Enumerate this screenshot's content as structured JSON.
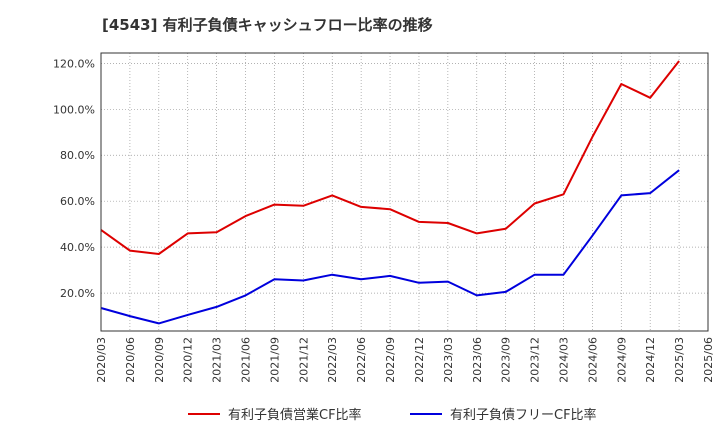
{
  "chart_data": {
    "type": "line",
    "title": "[4543]  有利子負債キャッシュフロー比率の推移",
    "x": [
      "2020/03",
      "2020/06",
      "2020/09",
      "2020/12",
      "2021/03",
      "2021/06",
      "2021/09",
      "2021/12",
      "2022/03",
      "2022/06",
      "2022/09",
      "2022/12",
      "2023/03",
      "2023/06",
      "2023/09",
      "2023/12",
      "2024/03",
      "2024/06",
      "2024/09",
      "2024/12",
      "2025/03",
      "2025/06"
    ],
    "ylim": [
      3.5,
      124.5
    ],
    "yticks": [
      20,
      40,
      60,
      80,
      100,
      120
    ],
    "ytick_labels": [
      "20.0%",
      "40.0%",
      "60.0%",
      "80.0%",
      "100.0%",
      "120.0%"
    ],
    "grid": true,
    "legend_position": "bottom",
    "series": [
      {
        "name": "有利子負債営業CF比率",
        "color": "#dd0000",
        "values": [
          47.5,
          38.5,
          37.0,
          46.0,
          46.5,
          53.5,
          58.5,
          58.0,
          62.5,
          57.5,
          56.5,
          51.0,
          50.5,
          46.0,
          48.0,
          59.0,
          63.0,
          88.0,
          111.0,
          105.0,
          121.0,
          null
        ]
      },
      {
        "name": "有利子負債フリーCF比率",
        "color": "#0000dd",
        "values": [
          13.5,
          10.0,
          6.8,
          10.5,
          14.0,
          19.0,
          26.0,
          25.5,
          28.0,
          26.0,
          27.5,
          24.5,
          25.0,
          19.0,
          20.5,
          28.0,
          28.0,
          45.0,
          62.5,
          63.5,
          73.5,
          null
        ]
      }
    ]
  }
}
